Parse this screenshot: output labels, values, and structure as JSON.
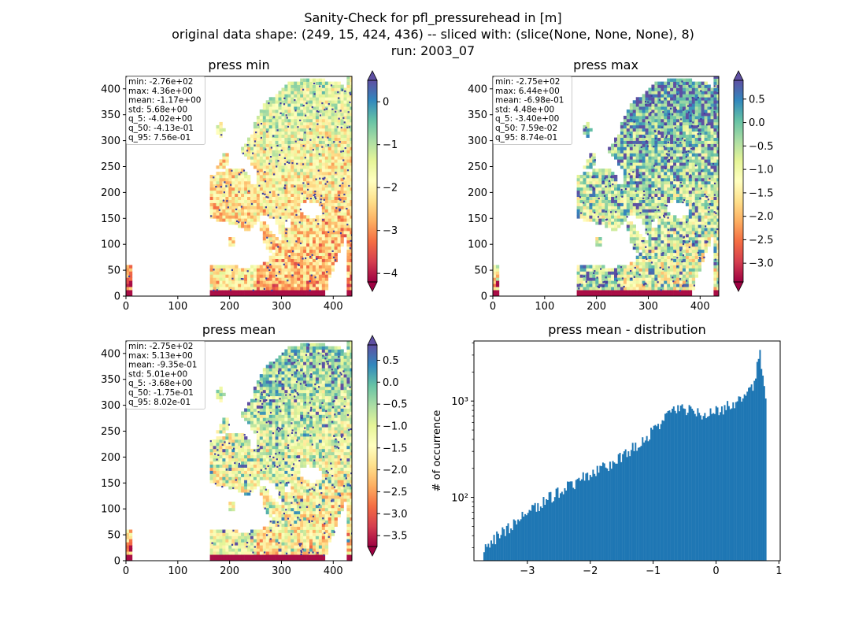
{
  "figure": {
    "title": "Sanity-Check for pfl_pressurehead in [m]",
    "subtitle": "original data shape: (249, 15, 424, 436) -- sliced with: (slice(None, None, None), 8)",
    "run": "run: 2003_07"
  },
  "chart_data": [
    {
      "type": "heatmap",
      "title": "press min",
      "xlim": [
        0,
        436
      ],
      "ylim": [
        0,
        424
      ],
      "xticks": [
        0,
        100,
        200,
        300,
        400
      ],
      "yticks": [
        0,
        50,
        100,
        150,
        200,
        250,
        300,
        350,
        400
      ],
      "colorbar": {
        "colormap": "Spectral",
        "range": [
          -4.2,
          0.5
        ],
        "ticks": [
          0,
          -1,
          -2,
          -3,
          -4
        ],
        "tick_labels": [
          "0",
          "−1",
          "−2",
          "−3",
          "−4"
        ],
        "extend": "both"
      },
      "stats": [
        "min: -2.76e+02",
        "max: 4.36e+00",
        "mean: -1.17e+00",
        "std: 5.68e+00",
        "q_5: -4.02e+00",
        "q_50: -4.13e-01",
        "q_95: 7.56e-01"
      ]
    },
    {
      "type": "heatmap",
      "title": "press max",
      "xlim": [
        0,
        436
      ],
      "ylim": [
        0,
        424
      ],
      "xticks": [
        0,
        100,
        200,
        300,
        400
      ],
      "yticks": [
        0,
        50,
        100,
        150,
        200,
        250,
        300,
        350,
        400
      ],
      "colorbar": {
        "colormap": "Spectral",
        "range": [
          -3.4,
          0.9
        ],
        "ticks": [
          0.5,
          0,
          -0.5,
          -1,
          -1.5,
          -2,
          -2.5,
          -3
        ],
        "tick_labels": [
          "0.5",
          "0.0",
          "−0.5",
          "−1.0",
          "−1.5",
          "−2.0",
          "−2.5",
          "−3.0"
        ],
        "extend": "both"
      },
      "stats": [
        "min: -2.75e+02",
        "max: 6.44e+00",
        "mean: -6.98e-01",
        "std: 4.48e+00",
        "q_5: -3.40e+00",
        "q_50: 7.59e-02",
        "q_95: 8.74e-01"
      ]
    },
    {
      "type": "heatmap",
      "title": "press mean",
      "xlim": [
        0,
        436
      ],
      "ylim": [
        0,
        424
      ],
      "xticks": [
        0,
        100,
        200,
        300,
        400
      ],
      "yticks": [
        0,
        50,
        100,
        150,
        200,
        250,
        300,
        350,
        400
      ],
      "colorbar": {
        "colormap": "Spectral",
        "range": [
          -3.75,
          0.85
        ],
        "ticks": [
          0.5,
          0,
          -0.5,
          -1,
          -1.5,
          -2,
          -2.5,
          -3,
          -3.5
        ],
        "tick_labels": [
          "0.5",
          "0.0",
          "−0.5",
          "−1.0",
          "−1.5",
          "−2.0",
          "−2.5",
          "−3.0",
          "−3.5"
        ],
        "extend": "both"
      },
      "stats": [
        "min: -2.75e+02",
        "max: 5.13e+00",
        "mean: -9.35e-01",
        "std: 5.01e+00",
        "q_5: -3.68e+00",
        "q_50: -1.75e-01",
        "q_95: 8.02e-01"
      ]
    },
    {
      "type": "bar",
      "title": "press mean - distribution",
      "ylabel": "# of occurrence",
      "yscale": "log",
      "xlim": [
        -3.85,
        1.02
      ],
      "ylim": [
        22,
        4200
      ],
      "xticks": [
        -3,
        -2,
        -1,
        0,
        1
      ],
      "xtick_labels": [
        "−3",
        "−2",
        "−1",
        "0",
        "1"
      ],
      "yticks": [
        100,
        1000
      ],
      "ytick_labels": [
        "10²",
        "10³"
      ],
      "color": "#1f77b4",
      "bins": [
        -3.7,
        0.8
      ],
      "count_profile_x": [
        -3.7,
        -3.5,
        -3.0,
        -2.5,
        -2.0,
        -1.5,
        -1.0,
        -0.8,
        -0.6,
        -0.4,
        -0.2,
        0.0,
        0.2,
        0.4,
        0.6,
        0.65,
        0.7,
        0.75,
        0.8
      ],
      "count_profile_y": [
        28,
        38,
        70,
        115,
        175,
        260,
        480,
        720,
        860,
        780,
        720,
        780,
        900,
        1050,
        1400,
        2200,
        3200,
        1800,
        1000
      ]
    }
  ]
}
